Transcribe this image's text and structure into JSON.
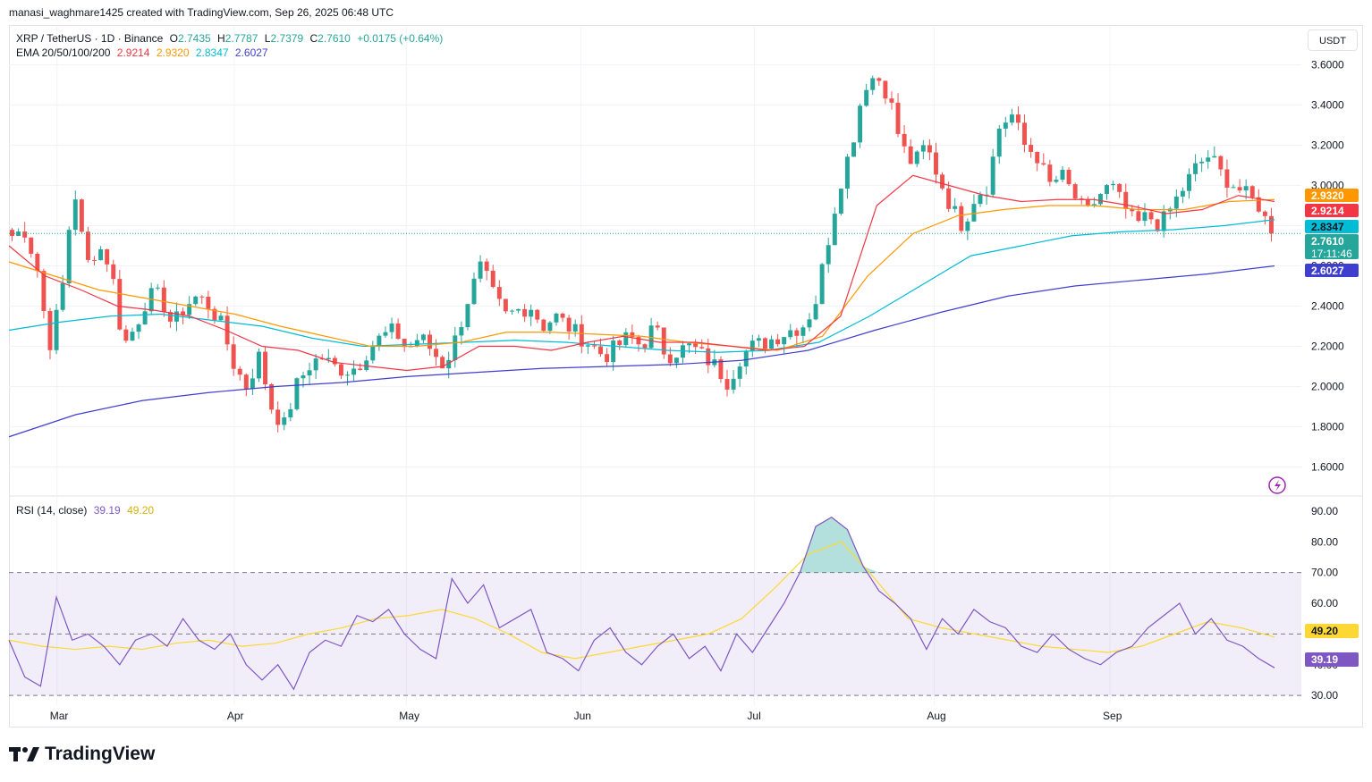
{
  "header": {
    "credit": "manasi_waghmare1425 created with TradingView.com, Sep 26, 2025 06:48 UTC"
  },
  "legend": {
    "symbol": "XRP / TetherUS · 1D · Binance",
    "o_label": "O",
    "o": "2.7435",
    "h_label": "H",
    "h": "2.7787",
    "l_label": "L",
    "l": "2.7379",
    "c_label": "C",
    "c": "2.7610",
    "change": "+0.0175 (+0.64%)",
    "ema_label": "EMA 20/50/100/200",
    "ema20": "2.9214",
    "ema50": "2.9320",
    "ema100": "2.8347",
    "ema200": "2.6027"
  },
  "rsi_legend": {
    "label": "RSI (14, close)",
    "rsi": "39.19",
    "ma": "49.20"
  },
  "currency_button": "USDT",
  "brand": "TradingView",
  "colors": {
    "up": "#26a69a",
    "down": "#ef5350",
    "ema20": "#f23645",
    "ema50": "#ff9800",
    "ema100": "#00bcd4",
    "ema200": "#3f3fcf",
    "rsi": "#7e57c2",
    "rsi_ma": "#fdd835",
    "rsi_band": "#7e57c2"
  },
  "chart_data": [
    {
      "type": "candlestick",
      "y_axis_ticks": [
        "3.6000",
        "3.4000",
        "3.2000",
        "3.0000",
        "2.8000",
        "2.6000",
        "2.4000",
        "2.2000",
        "2.0000",
        "1.8000",
        "1.6000"
      ],
      "ylim": [
        1.5,
        3.7
      ],
      "x_axis_ticks": [
        "Mar",
        "Apr",
        "May",
        "Jun",
        "Jul",
        "Aug",
        "Sep"
      ],
      "price_labels": [
        {
          "value": "2.9320",
          "series": "ema50"
        },
        {
          "value": "2.9214",
          "series": "ema20"
        },
        {
          "value": "2.8347",
          "series": "ema100"
        },
        {
          "value": "2.7610",
          "series": "last",
          "sub": "17:11:46"
        },
        {
          "value": "2.6027",
          "series": "ema200"
        }
      ],
      "last_price": 2.761,
      "price_path": [
        2.75,
        2.78,
        2.6,
        2.2,
        2.45,
        3.0,
        2.6,
        2.7,
        2.6,
        2.2,
        2.3,
        2.45,
        2.45,
        2.3,
        2.4,
        2.45,
        2.4,
        2.3,
        2.1,
        2.0,
        2.15,
        1.9,
        1.8,
        2.0,
        2.1,
        2.15,
        2.1,
        2.08,
        2.1,
        2.2,
        2.25,
        2.28,
        2.18,
        2.25,
        2.18,
        2.1,
        2.25,
        2.45,
        2.6,
        2.45,
        2.35,
        2.38,
        2.4,
        2.3,
        2.35,
        2.3,
        2.25,
        2.2,
        2.15,
        2.2,
        2.25,
        2.2,
        2.3,
        2.15,
        2.18,
        2.2,
        2.15,
        2.1,
        2.02,
        2.15,
        2.2,
        2.22,
        2.25,
        2.28,
        2.3,
        2.4,
        2.7,
        3.0,
        3.2,
        3.5,
        3.55,
        3.45,
        3.2,
        3.1,
        3.2,
        3.05,
        2.9,
        2.8,
        2.95,
        3.0,
        3.3,
        3.35,
        3.2,
        3.15,
        3.0,
        3.05,
        2.95,
        2.85,
        2.95,
        3.0,
        2.9,
        2.8,
        2.85,
        2.8,
        2.9,
        3.0,
        3.1,
        3.15,
        3.05,
        3.0,
        2.95,
        2.9,
        2.76
      ],
      "ema20": [
        2.7,
        2.55,
        2.48,
        2.4,
        2.38,
        2.35,
        2.28,
        2.2,
        2.18,
        2.12,
        2.1,
        2.08,
        2.1,
        2.2,
        2.2,
        2.18,
        2.22,
        2.25,
        2.22,
        2.22,
        2.2,
        2.18,
        2.2,
        2.35,
        2.9,
        3.05,
        3.0,
        2.95,
        2.92,
        2.93,
        2.93,
        2.9,
        2.86,
        2.88,
        2.95,
        2.92
      ],
      "ema50": [
        2.62,
        2.55,
        2.48,
        2.44,
        2.4,
        2.36,
        2.3,
        2.25,
        2.2,
        2.2,
        2.22,
        2.27,
        2.27,
        2.26,
        2.25,
        2.22,
        2.2,
        2.18,
        2.25,
        2.55,
        2.76,
        2.85,
        2.88,
        2.9,
        2.9,
        2.88,
        2.88,
        2.92,
        2.93
      ],
      "ema100": [
        2.28,
        2.32,
        2.35,
        2.36,
        2.33,
        2.3,
        2.24,
        2.2,
        2.21,
        2.22,
        2.23,
        2.22,
        2.2,
        2.18,
        2.17,
        2.18,
        2.22,
        2.35,
        2.5,
        2.65,
        2.7,
        2.75,
        2.77,
        2.78,
        2.8,
        2.83
      ],
      "ema200": [
        1.75,
        1.86,
        1.93,
        1.97,
        2.0,
        2.02,
        2.05,
        2.07,
        2.09,
        2.1,
        2.11,
        2.13,
        2.18,
        2.28,
        2.37,
        2.45,
        2.5,
        2.53,
        2.56,
        2.6
      ]
    },
    {
      "type": "line",
      "name": "RSI (14, close)",
      "y_axis_ticks": [
        "90.00",
        "80.00",
        "70.00",
        "60.00",
        "50.00",
        "40.00",
        "30.00"
      ],
      "ylim": [
        28,
        92
      ],
      "bands": {
        "upper": 70,
        "middle": 50,
        "lower": 30
      },
      "price_labels": [
        {
          "value": "49.20",
          "series": "rsi_ma"
        },
        {
          "value": "39.19",
          "series": "rsi"
        }
      ],
      "rsi": [
        48,
        36,
        33,
        62,
        48,
        50,
        46,
        40,
        48,
        50,
        46,
        55,
        48,
        45,
        50,
        40,
        35,
        40,
        32,
        44,
        48,
        46,
        56,
        54,
        58,
        50,
        45,
        42,
        68,
        60,
        66,
        52,
        55,
        58,
        44,
        42,
        38,
        48,
        52,
        44,
        40,
        46,
        50,
        42,
        46,
        38,
        50,
        44,
        52,
        60,
        70,
        85,
        88,
        84,
        72,
        64,
        60,
        55,
        45,
        55,
        50,
        58,
        54,
        52,
        46,
        44,
        50,
        45,
        42,
        40,
        44,
        46,
        52,
        56,
        60,
        50,
        55,
        48,
        46,
        42,
        39
      ],
      "rsi_ma": [
        48,
        46,
        45,
        46,
        45,
        47,
        48,
        46,
        47,
        50,
        52,
        55,
        56,
        58,
        55,
        50,
        44,
        42,
        44,
        46,
        48,
        50,
        55,
        65,
        76,
        80,
        68,
        55,
        52,
        50,
        48,
        46,
        45,
        44,
        46,
        50,
        54,
        52,
        49
      ]
    }
  ]
}
